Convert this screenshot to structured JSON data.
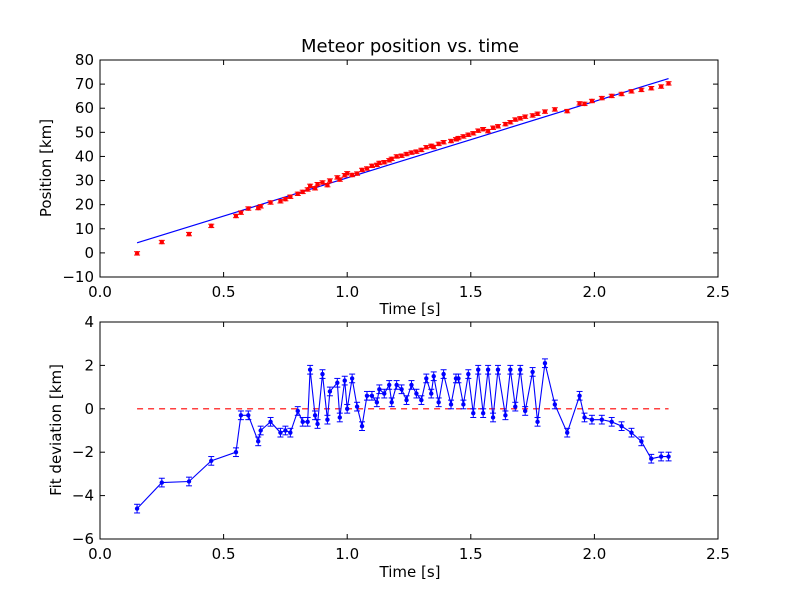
{
  "chart_data": [
    {
      "type": "scatter",
      "title": "Meteor position vs. time",
      "xlabel": "Time [s]",
      "ylabel": "Position [km]",
      "xlim": [
        0.0,
        2.5
      ],
      "ylim": [
        -10,
        80
      ],
      "xticks": [
        "0.0",
        "0.5",
        "1.0",
        "1.5",
        "2.0",
        "2.5"
      ],
      "yticks": [
        "−10",
        "0",
        "10",
        "20",
        "30",
        "40",
        "50",
        "60",
        "70",
        "80"
      ],
      "grid": false,
      "legend": "none",
      "colors": {
        "measured": "#ff0000",
        "fit": "#0000ff"
      },
      "series": [
        {
          "kind": "points-with-errorbars",
          "x": [
            0.15,
            0.25,
            0.36,
            0.45,
            0.55,
            0.57,
            0.6,
            0.64,
            0.65,
            0.69,
            0.73,
            0.75,
            0.77,
            0.8,
            0.82,
            0.84,
            0.85,
            0.87,
            0.88,
            0.9,
            0.92,
            0.93,
            0.96,
            0.97,
            0.99,
            1.0,
            1.02,
            1.04,
            1.06,
            1.08,
            1.1,
            1.12,
            1.13,
            1.15,
            1.17,
            1.18,
            1.2,
            1.22,
            1.24,
            1.26,
            1.28,
            1.3,
            1.32,
            1.34,
            1.35,
            1.37,
            1.39,
            1.42,
            1.44,
            1.45,
            1.47,
            1.49,
            1.51,
            1.53,
            1.55,
            1.57,
            1.59,
            1.61,
            1.64,
            1.66,
            1.68,
            1.7,
            1.72,
            1.75,
            1.77,
            1.8,
            1.84,
            1.89,
            1.94,
            1.96,
            1.99,
            2.03,
            2.07,
            2.11,
            2.15,
            2.19,
            2.23,
            2.27,
            2.3
          ],
          "y": [
            -0.2,
            4.5,
            7.8,
            11.2,
            15.3,
            16.7,
            18.4,
            18.6,
            19.3,
            20.9,
            21.4,
            22.3,
            23.3,
            24.5,
            25.3,
            26.3,
            27.8,
            26.8,
            28.5,
            29.2,
            28.1,
            30.0,
            31.3,
            30.4,
            32.2,
            33.0,
            32.3,
            32.9,
            34.4,
            35.0,
            36.1,
            36.5,
            37.3,
            37.6,
            38.4,
            39.0,
            40.0,
            40.3,
            41.0,
            41.6,
            42.0,
            42.7,
            43.8,
            44.4,
            43.9,
            45.2,
            45.9,
            46.4,
            47.1,
            47.6,
            48.3,
            49.0,
            49.6,
            50.7,
            51.3,
            50.5,
            51.9,
            52.5,
            53.4,
            54.2,
            55.3,
            55.8,
            56.5,
            57.0,
            57.7,
            58.6,
            59.5,
            58.8,
            62.0,
            61.8,
            63.0,
            64.2,
            65.1,
            65.9,
            67.0,
            67.6,
            68.3,
            69.0,
            70.3
          ],
          "yerr": 0.7
        },
        {
          "kind": "fit-line",
          "x": [
            0.15,
            2.3
          ],
          "y": [
            4.2,
            72.3
          ]
        }
      ]
    },
    {
      "type": "line",
      "title": "",
      "xlabel": "Time [s]",
      "ylabel": "Fit deviation [km]",
      "xlim": [
        0.0,
        2.5
      ],
      "ylim": [
        -6,
        4
      ],
      "xticks": [
        "0.0",
        "0.5",
        "1.0",
        "1.5",
        "2.0",
        "2.5"
      ],
      "yticks": [
        "−6",
        "−4",
        "−2",
        "0",
        "2",
        "4"
      ],
      "grid": false,
      "legend": "none",
      "colors": {
        "deviation": "#0000ff",
        "zero": "#ff0000"
      },
      "series": [
        {
          "kind": "line-with-errorbars",
          "x": [
            0.15,
            0.25,
            0.36,
            0.45,
            0.55,
            0.57,
            0.6,
            0.64,
            0.65,
            0.69,
            0.73,
            0.75,
            0.77,
            0.8,
            0.82,
            0.84,
            0.85,
            0.87,
            0.88,
            0.9,
            0.92,
            0.93,
            0.96,
            0.97,
            0.99,
            1.0,
            1.02,
            1.04,
            1.06,
            1.08,
            1.1,
            1.12,
            1.13,
            1.15,
            1.17,
            1.18,
            1.2,
            1.22,
            1.24,
            1.26,
            1.28,
            1.3,
            1.32,
            1.34,
            1.35,
            1.37,
            1.39,
            1.42,
            1.44,
            1.45,
            1.47,
            1.49,
            1.51,
            1.53,
            1.55,
            1.57,
            1.59,
            1.61,
            1.64,
            1.66,
            1.68,
            1.7,
            1.72,
            1.75,
            1.77,
            1.8,
            1.84,
            1.89,
            1.94,
            1.96,
            1.99,
            2.03,
            2.07,
            2.11,
            2.15,
            2.19,
            2.23,
            2.27,
            2.3
          ],
          "y": [
            -4.6,
            -3.4,
            -3.35,
            -2.4,
            -2.0,
            -0.3,
            -0.3,
            -1.5,
            -1.0,
            -0.6,
            -1.1,
            -1.0,
            -1.1,
            -0.1,
            -0.6,
            -0.6,
            1.8,
            -0.3,
            -0.7,
            1.6,
            -0.5,
            0.8,
            1.2,
            -0.4,
            1.3,
            0.0,
            1.4,
            0.1,
            -0.8,
            0.6,
            0.6,
            0.3,
            0.9,
            0.7,
            1.1,
            0.3,
            1.1,
            0.9,
            0.4,
            1.1,
            0.7,
            0.4,
            1.4,
            0.7,
            1.5,
            0.3,
            1.6,
            0.2,
            1.4,
            1.4,
            0.2,
            1.6,
            -0.2,
            1.8,
            -0.2,
            1.8,
            -0.4,
            1.8,
            -0.3,
            1.8,
            0.1,
            1.8,
            -0.1,
            1.7,
            -0.6,
            2.1,
            0.2,
            -1.1,
            0.6,
            -0.4,
            -0.5,
            -0.5,
            -0.6,
            -0.8,
            -1.1,
            -1.5,
            -2.3,
            -2.2,
            -2.2
          ],
          "yerr": 0.2
        },
        {
          "kind": "zero-line",
          "x": [
            0.15,
            2.3
          ],
          "y": [
            0,
            0
          ]
        }
      ]
    }
  ]
}
